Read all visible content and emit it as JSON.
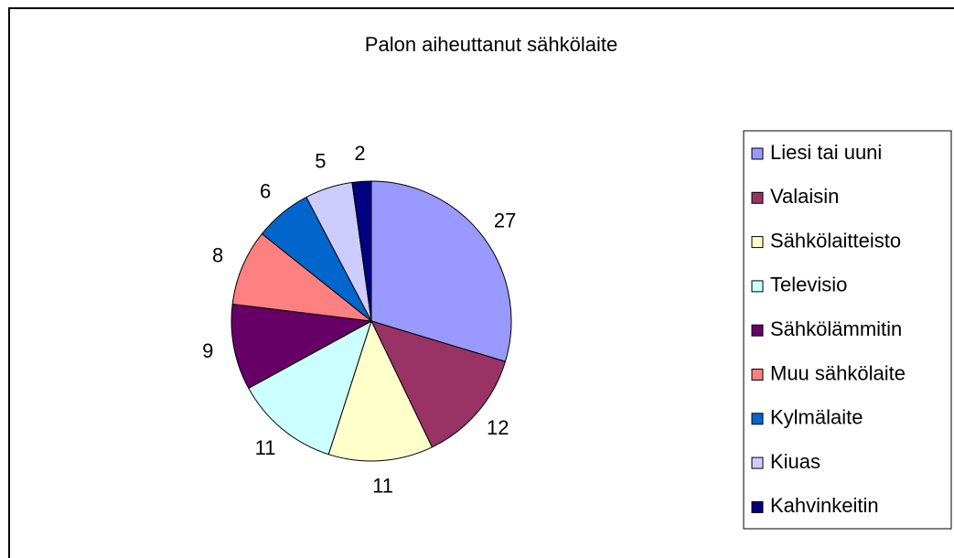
{
  "chart_data": {
    "type": "pie",
    "title": "Palon aiheuttanut sähkölaite",
    "categories": [
      "Liesi tai uuni",
      "Valaisin",
      "Sähkölaitteisto",
      "Televisio",
      "Sähkölämmitin",
      "Muu sähkölaite",
      "Kylmälaite",
      "Kiuas",
      "Kahvinkeitin"
    ],
    "values": [
      27,
      12,
      11,
      11,
      9,
      8,
      6,
      5,
      2
    ],
    "colors": [
      "#9999ff",
      "#993366",
      "#ffffcc",
      "#ccffff",
      "#660066",
      "#ff8080",
      "#0066cc",
      "#ccccff",
      "#000080"
    ],
    "legend": "right"
  }
}
